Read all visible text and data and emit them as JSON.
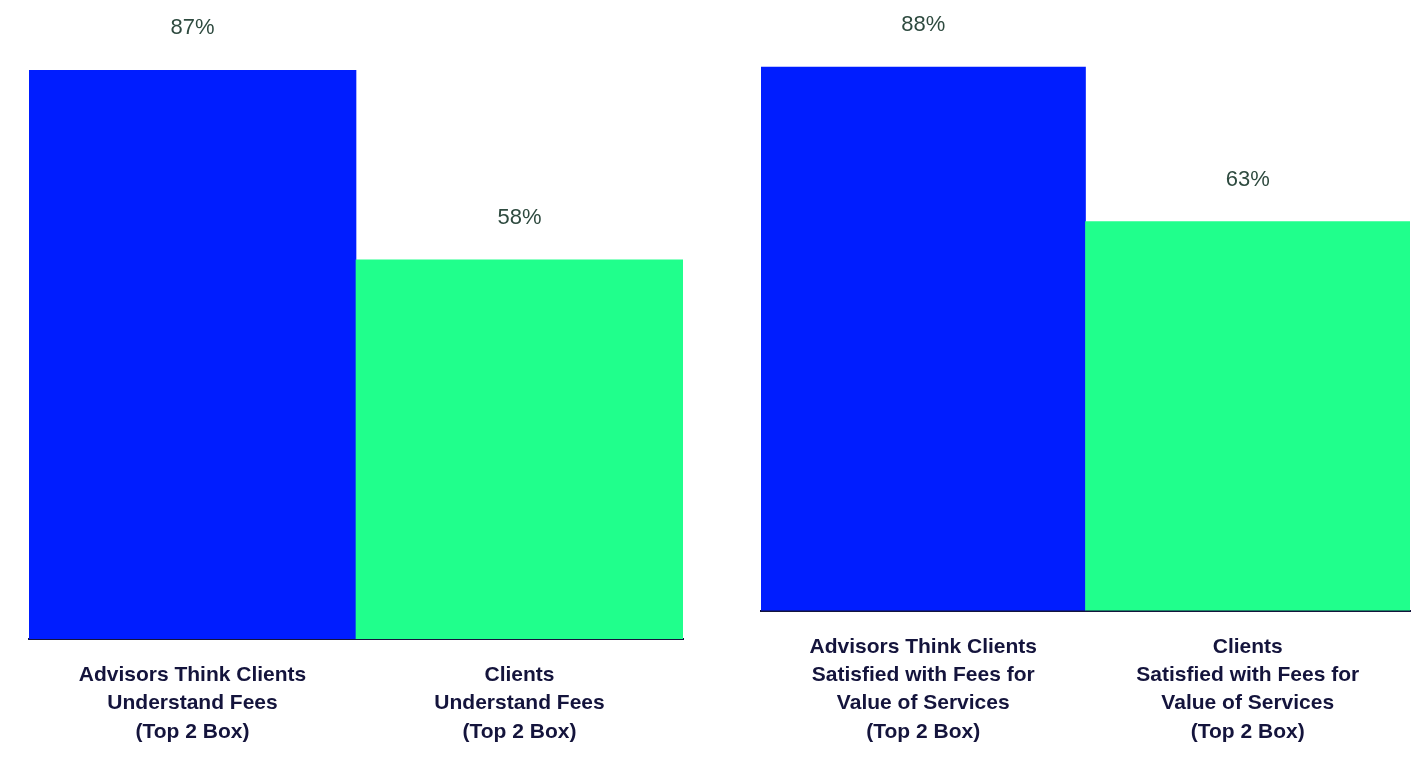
{
  "chart_data": [
    {
      "type": "bar",
      "categories": [
        "Advisors Think Clients\nUnderstand Fees\n(Top 2 Box)",
        "Clients\nUnderstand Fees\n(Top 2 Box)"
      ],
      "values": [
        87,
        58
      ],
      "colors": [
        "#001dff",
        "#20ff8c"
      ],
      "value_labels": [
        "87%",
        "58%"
      ],
      "legend": false,
      "grid": false
    },
    {
      "type": "bar",
      "categories": [
        "Advisors Think Clients\nSatisfied with Fees for\nValue of Services\n(Top 2 Box)",
        "Clients\nSatisfied with Fees for\nValue of Services\n(Top 2 Box)"
      ],
      "values": [
        88,
        63
      ],
      "colors": [
        "#001dff",
        "#20ff8c"
      ],
      "value_labels": [
        "88%",
        "63%"
      ],
      "legend": false,
      "grid": false
    }
  ]
}
